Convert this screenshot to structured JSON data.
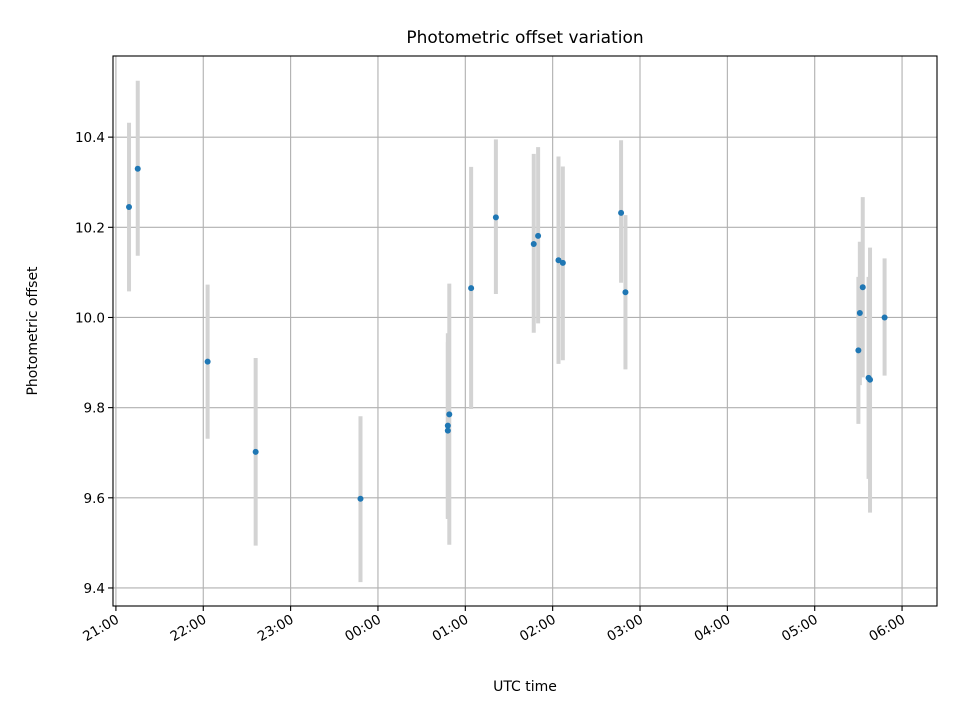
{
  "chart_data": {
    "type": "scatter",
    "title": "Photometric offset variation",
    "xlabel": "UTC time",
    "ylabel": "Photometric offset",
    "x_is_time": true,
    "x_start": "21:00",
    "xlim": [
      "20:58",
      "06:24"
    ],
    "ylim": [
      9.36,
      10.58
    ],
    "grid": true,
    "legend": "none",
    "colors": {
      "marker": "#1f77b4",
      "errorbar": "#d3d3d3",
      "grid": "#b0b0b0"
    },
    "xticks": [
      "21:00",
      "22:00",
      "23:00",
      "00:00",
      "01:00",
      "02:00",
      "03:00",
      "04:00",
      "05:00",
      "06:00"
    ],
    "yticks": [
      9.4,
      9.6,
      9.8,
      10.0,
      10.2,
      10.4
    ],
    "ytick_labels": [
      "9.4",
      "9.6",
      "9.8",
      "10.0",
      "10.2",
      "10.4"
    ],
    "points": [
      {
        "x": "21:09",
        "y": 10.245,
        "err_low": 10.058,
        "err_high": 10.432
      },
      {
        "x": "21:15",
        "y": 10.33,
        "err_low": 10.137,
        "err_high": 10.525
      },
      {
        "x": "22:03",
        "y": 9.902,
        "err_low": 9.731,
        "err_high": 10.073
      },
      {
        "x": "22:36",
        "y": 9.702,
        "err_low": 9.494,
        "err_high": 9.91
      },
      {
        "x": "23:48",
        "y": 9.598,
        "err_low": 9.413,
        "err_high": 9.781
      },
      {
        "x": "00:48",
        "y": 9.76,
        "err_low": 9.554,
        "err_high": 9.965
      },
      {
        "x": "00:48",
        "y": 9.749,
        "err_low": 9.553,
        "err_high": 9.945
      },
      {
        "x": "00:49",
        "y": 9.785,
        "err_low": 9.496,
        "err_high": 10.075
      },
      {
        "x": "01:04",
        "y": 10.065,
        "err_low": 9.797,
        "err_high": 10.334
      },
      {
        "x": "01:21",
        "y": 10.222,
        "err_low": 10.052,
        "err_high": 10.395
      },
      {
        "x": "01:47",
        "y": 10.163,
        "err_low": 9.966,
        "err_high": 10.363
      },
      {
        "x": "01:50",
        "y": 10.181,
        "err_low": 9.987,
        "err_high": 10.378
      },
      {
        "x": "02:04",
        "y": 10.127,
        "err_low": 9.897,
        "err_high": 10.357
      },
      {
        "x": "02:07",
        "y": 10.121,
        "err_low": 9.905,
        "err_high": 10.335
      },
      {
        "x": "02:47",
        "y": 10.232,
        "err_low": 10.077,
        "err_high": 10.393
      },
      {
        "x": "02:50",
        "y": 10.056,
        "err_low": 9.885,
        "err_high": 10.227
      },
      {
        "x": "05:30",
        "y": 9.927,
        "err_low": 9.764,
        "err_high": 10.09
      },
      {
        "x": "05:31",
        "y": 10.01,
        "err_low": 9.85,
        "err_high": 10.168
      },
      {
        "x": "05:33",
        "y": 10.067,
        "err_low": 9.867,
        "err_high": 10.267
      },
      {
        "x": "05:37",
        "y": 9.866,
        "err_low": 9.642,
        "err_high": 10.09
      },
      {
        "x": "05:38",
        "y": 9.862,
        "err_low": 9.567,
        "err_high": 10.155
      },
      {
        "x": "05:48",
        "y": 10.0,
        "err_low": 9.871,
        "err_high": 10.131
      }
    ]
  }
}
